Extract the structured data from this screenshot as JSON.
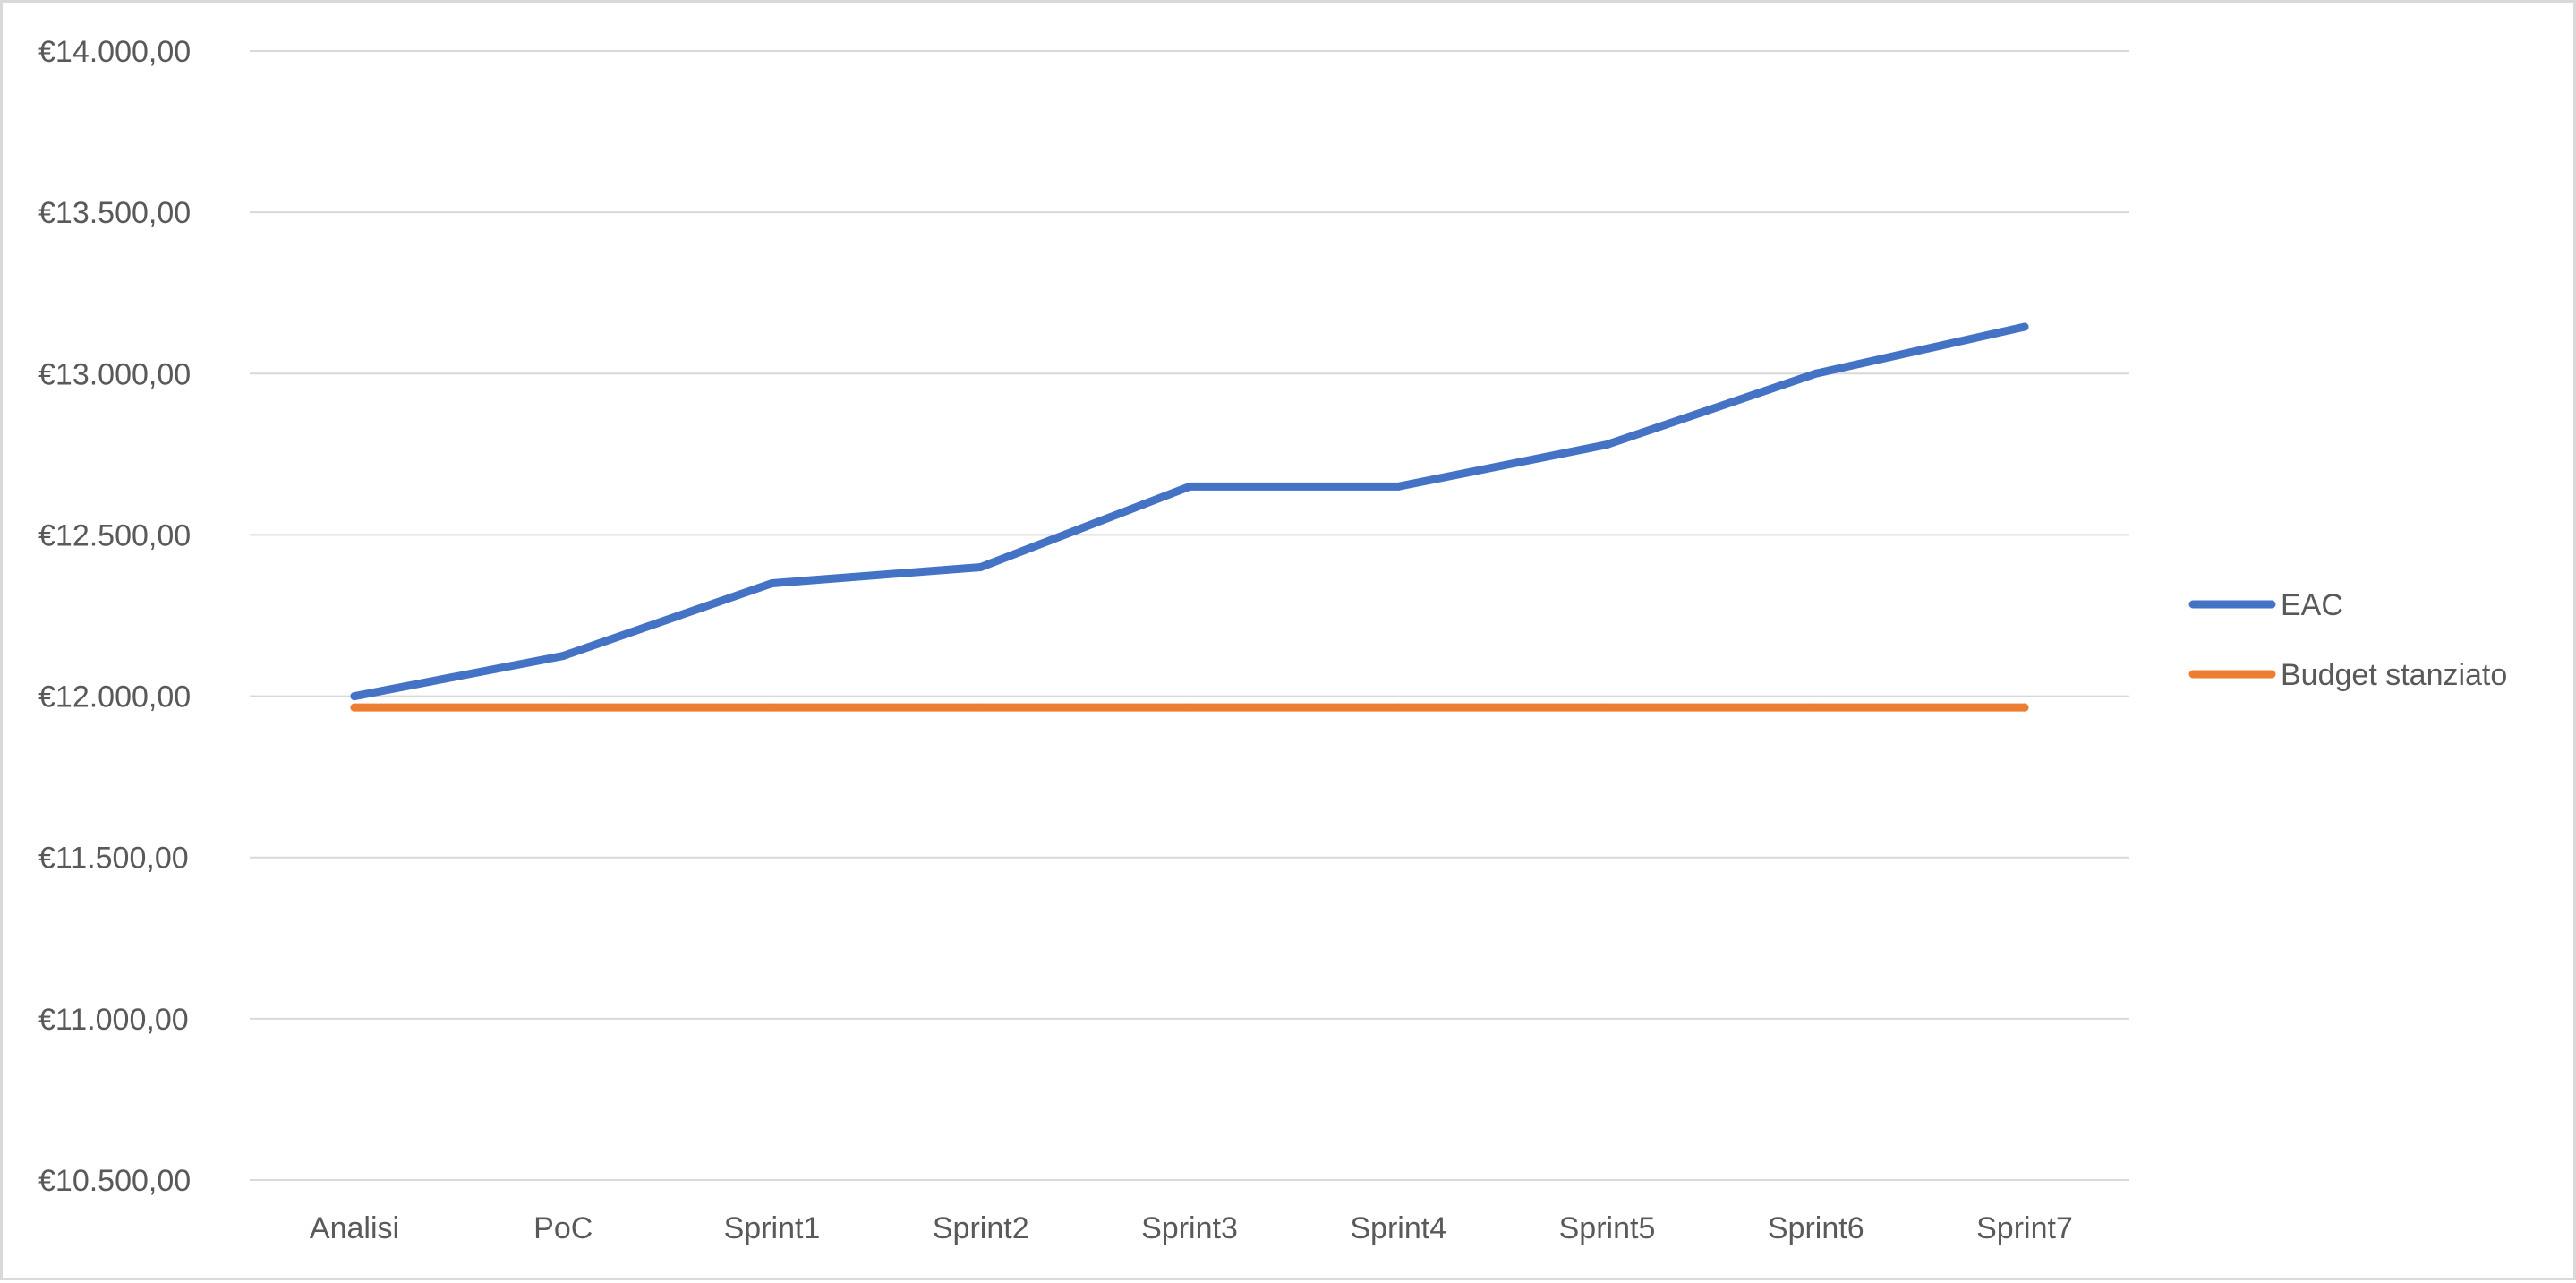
{
  "chart_data": {
    "type": "line",
    "title": "",
    "xlabel": "",
    "ylabel": "",
    "categories": [
      "Analisi",
      "PoC",
      "Sprint1",
      "Sprint2",
      "Sprint3",
      "Sprint4",
      "Sprint5",
      "Sprint6",
      "Sprint7"
    ],
    "series": [
      {
        "name": "EAC",
        "color": "#4472c4",
        "values": [
          12000,
          12125,
          12350,
          12400,
          12650,
          12650,
          12780,
          13000,
          13145
        ]
      },
      {
        "name": "Budget stanziato",
        "color": "#ed7d31",
        "values": [
          11965,
          11965,
          11965,
          11965,
          11965,
          11965,
          11965,
          11965,
          11965
        ]
      }
    ],
    "ylim": [
      10500,
      14000
    ],
    "yticks": [
      10500,
      11000,
      11500,
      12000,
      12500,
      13000,
      13500,
      14000
    ],
    "ytick_labels": [
      "€10.500,00",
      "€11.000,00",
      "€11.500,00",
      "€12.000,00",
      "€12.500,00",
      "€13.000,00",
      "€13.500,00",
      "€14.000,00"
    ],
    "grid": true,
    "legend_position": "right"
  }
}
